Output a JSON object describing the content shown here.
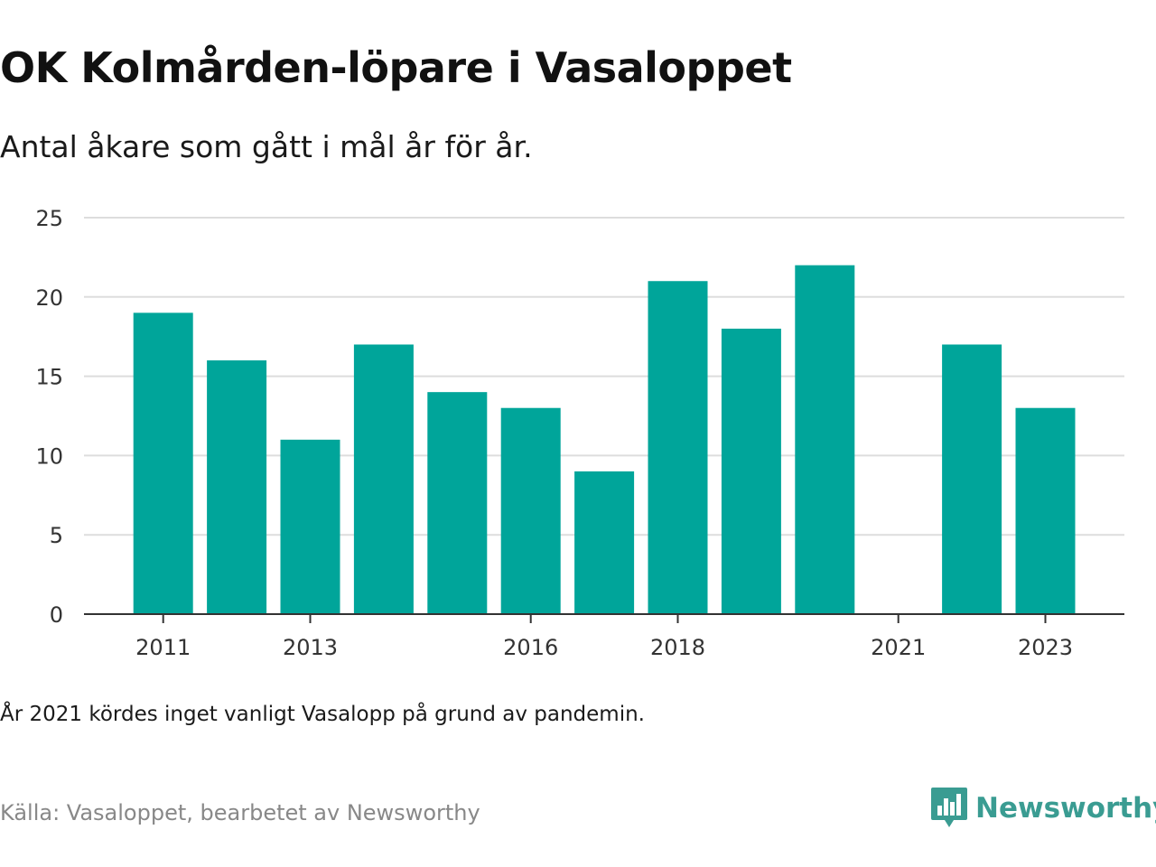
{
  "title": "OK Kolmården-löpare i Vasaloppet",
  "subtitle": "Antal åkare som gått i mål år för år.",
  "note": "År 2021 kördes inget vanligt Vasalopp på grund av pandemin.",
  "source": "Källa: Vasaloppet, bearbetet av Newsworthy",
  "brand": "Newsworthy",
  "colors": {
    "bar": "#00a59a",
    "grid": "#dddddd",
    "axis": "#333333",
    "brand": "#3a9c92"
  },
  "chart_data": {
    "type": "bar",
    "categories": [
      "2011",
      "2012",
      "2013",
      "2014",
      "2015",
      "2016",
      "2017",
      "2018",
      "2019",
      "2020",
      "2021",
      "2022",
      "2023"
    ],
    "values": [
      19,
      16,
      11,
      17,
      14,
      13,
      9,
      21,
      18,
      22,
      0,
      17,
      13
    ],
    "x_tick_labels": [
      "2011",
      "2013",
      "2016",
      "2018",
      "2021",
      "2023"
    ],
    "y_ticks": [
      0,
      5,
      10,
      15,
      20,
      25
    ],
    "ylim": [
      0,
      25
    ],
    "grid": true,
    "title": "OK Kolmården-löpare i Vasaloppet",
    "subtitle": "Antal åkare som gått i mål år för år.",
    "xlabel": "",
    "ylabel": ""
  }
}
